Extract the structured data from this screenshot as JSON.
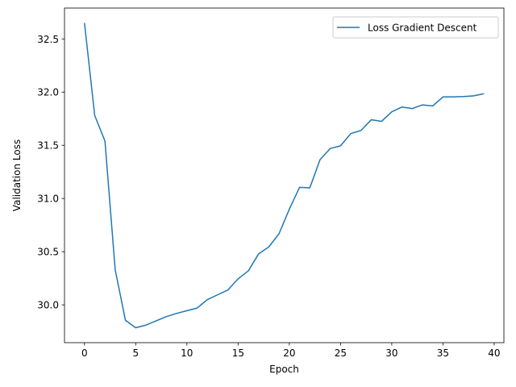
{
  "chart_data": {
    "type": "line",
    "title": "",
    "xlabel": "Epoch",
    "ylabel": "Validation Loss",
    "xlim": [
      -1.95,
      40.95
    ],
    "ylim": [
      29.645,
      32.79
    ],
    "x_ticks": [
      0,
      5,
      10,
      15,
      20,
      25,
      30,
      35,
      40
    ],
    "y_ticks": [
      30.0,
      30.5,
      31.0,
      31.5,
      32.0,
      32.5
    ],
    "x_tick_labels": [
      "0",
      "5",
      "10",
      "15",
      "20",
      "25",
      "30",
      "35",
      "40"
    ],
    "y_tick_labels": [
      "30.0",
      "30.5",
      "31.0",
      "31.5",
      "32.0",
      "32.5"
    ],
    "grid": false,
    "legend_position": "upper right",
    "colors": {
      "series": "#1f77b4"
    },
    "series": [
      {
        "name": "Loss Gradient Descent",
        "x": [
          0,
          1,
          2,
          3,
          4,
          5,
          6,
          7,
          8,
          9,
          10,
          11,
          12,
          13,
          14,
          15,
          16,
          17,
          18,
          19,
          20,
          21,
          22,
          23,
          24,
          25,
          26,
          27,
          28,
          29,
          30,
          31,
          32,
          33,
          34,
          35,
          36,
          37,
          38,
          39
        ],
        "y": [
          32.65,
          31.78,
          31.54,
          30.33,
          29.855,
          29.785,
          29.81,
          29.85,
          29.89,
          29.92,
          29.945,
          29.97,
          30.05,
          30.095,
          30.14,
          30.245,
          30.32,
          30.48,
          30.545,
          30.67,
          30.9,
          31.105,
          31.1,
          31.365,
          31.47,
          31.495,
          31.61,
          31.64,
          31.74,
          31.725,
          31.815,
          31.86,
          31.845,
          31.88,
          31.87,
          31.955,
          31.955,
          31.958,
          31.965,
          31.985
        ]
      }
    ]
  }
}
